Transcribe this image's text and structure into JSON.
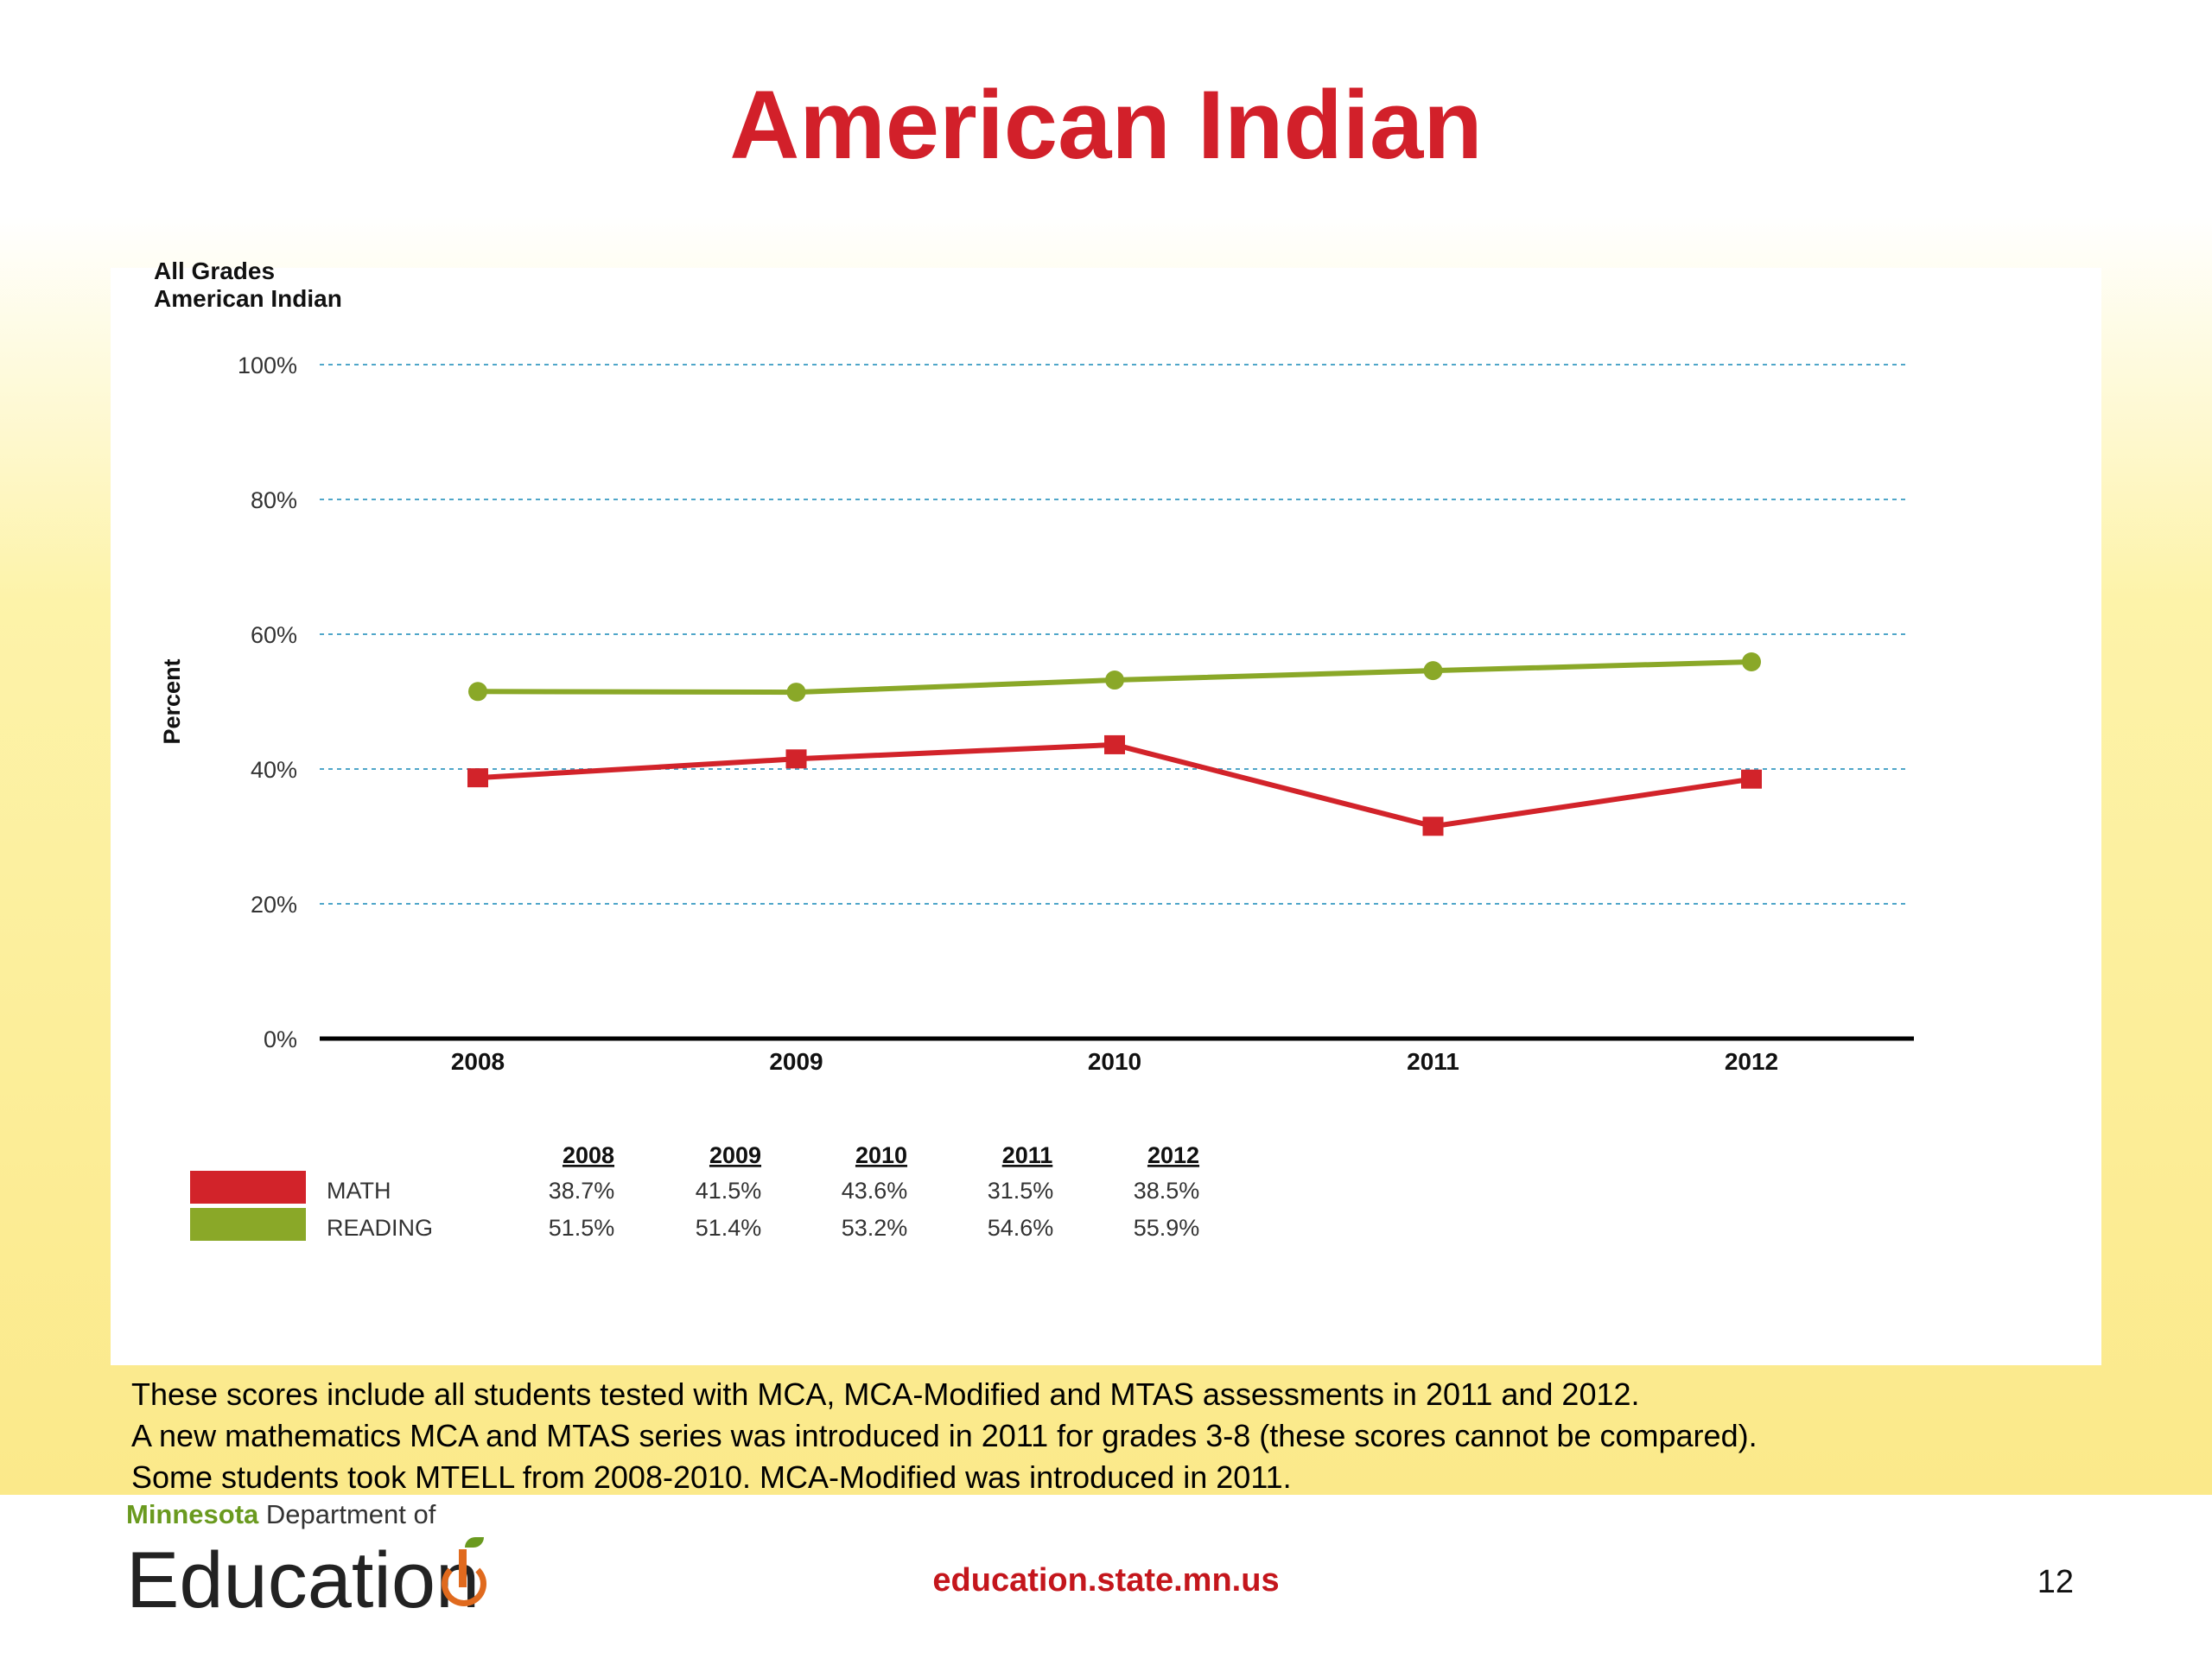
{
  "slide": {
    "title": "American Indian",
    "notes": [
      "These scores include all students tested with MCA, MCA-Modified and MTAS assessments in 2011 and 2012.",
      "A new mathematics MCA and MTAS series was introduced in 2011 for grades 3-8 (these scores cannot be compared).",
      "Some students took MTELL from 2008-2010.  MCA-Modified was introduced in 2011."
    ],
    "footer_url": "education.state.mn.us",
    "page_number": "12",
    "logo": {
      "state": "Minnesota",
      "dept": "Department of",
      "name": "Education"
    }
  },
  "chart_data": {
    "type": "line",
    "caption": [
      "All Grades",
      "American Indian"
    ],
    "ylabel": "Percent",
    "ylim": [
      0,
      100
    ],
    "yticks": [
      "0%",
      "20%",
      "40%",
      "60%",
      "80%",
      "100%"
    ],
    "categories": [
      "2008",
      "2009",
      "2010",
      "2011",
      "2012"
    ],
    "grid": true,
    "series": [
      {
        "name": "MATH",
        "color": "#d2232a",
        "marker": "square",
        "values": [
          38.7,
          41.5,
          43.6,
          31.5,
          38.5
        ],
        "labels": [
          "38.7%",
          "41.5%",
          "43.6%",
          "31.5%",
          "38.5%"
        ]
      },
      {
        "name": "READING",
        "color": "#8aa828",
        "marker": "circle",
        "values": [
          51.5,
          51.4,
          53.2,
          54.6,
          55.9
        ],
        "labels": [
          "51.5%",
          "51.4%",
          "53.2%",
          "54.6%",
          "55.9%"
        ]
      }
    ],
    "legend_table": {
      "headers": [
        "2008",
        "2009",
        "2010",
        "2011",
        "2012"
      ]
    }
  }
}
